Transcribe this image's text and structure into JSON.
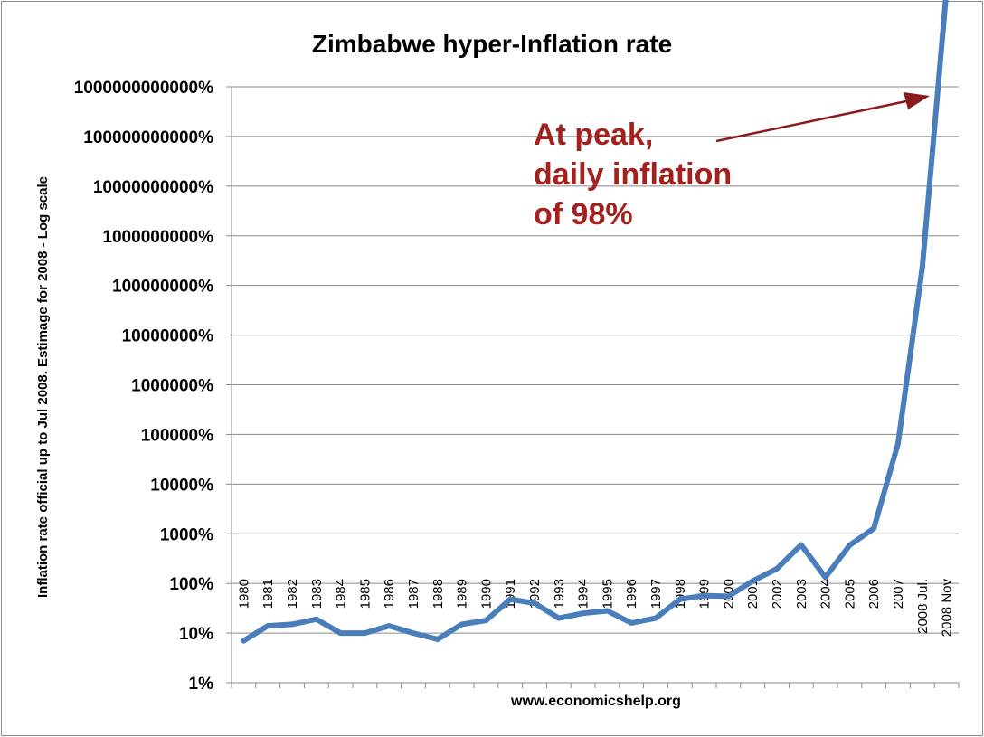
{
  "chart_data": {
    "type": "line",
    "title": "Zimbabwe hyper-Inflation rate",
    "ylabel": "Inflation rate official up to Jul 2008. Estimage for 2008 - Log scale",
    "xlabel": "www.economicshelp.org",
    "yscale": "log",
    "ylim": [
      1,
      100000000000000
    ],
    "yticks": [
      1,
      10,
      100,
      1000,
      10000,
      100000,
      1000000,
      10000000,
      100000000,
      1000000000,
      10000000000,
      100000000000,
      1000000000000
    ],
    "ytick_labels": [
      "1%",
      "10%",
      "100%",
      "1000%",
      "10000%",
      "100000%",
      "1000000%",
      "10000000%",
      "100000000%",
      "1000000000%",
      "10000000000%",
      "100000000000%",
      "1000000000000%"
    ],
    "categories": [
      "1980",
      "1981",
      "1982",
      "1983",
      "1984",
      "1985",
      "1986",
      "1987",
      "1988",
      "1989",
      "1990",
      "1991",
      "1992",
      "1993",
      "1994",
      "1995",
      "1996",
      "1997",
      "1998",
      "1999",
      "2000",
      "2001",
      "2002",
      "2003",
      "2004",
      "2005",
      "2006",
      "2007",
      "2008 Jul.",
      "2008 Nov"
    ],
    "series": [
      {
        "values": [
          7,
          14,
          15,
          19,
          10,
          10,
          14,
          10,
          7.5,
          15,
          18,
          48,
          40,
          20,
          25,
          28,
          16,
          20,
          48,
          57,
          55,
          112,
          198,
          599,
          133,
          586,
          1281,
          66212,
          231000000,
          89700000000000
        ],
        "color": "#4a7ebb"
      }
    ],
    "grid": true,
    "annotation": {
      "lines": [
        "At peak,",
        "daily inflation",
        "of 98%"
      ],
      "color": "#a3201c"
    }
  }
}
